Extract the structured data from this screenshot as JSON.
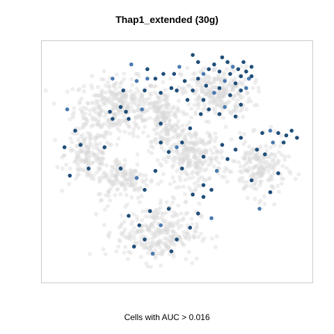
{
  "chart_data": {
    "type": "scatter",
    "title": "Thap1_extended (30g)",
    "xlabel": "Cells with AUC > 0.016",
    "ylabel": "",
    "xlim": [
      0,
      100
    ],
    "ylim": [
      0,
      100
    ],
    "grid": false,
    "axes_drawn": false,
    "colors": {
      "background_cells": "#d9d9d9",
      "highlighted_cells": "#1f4e79",
      "highlighted_cells_light": "#4a79b0",
      "frame": "#c8c8c8"
    },
    "background_clusters": [
      {
        "name": "upper-left",
        "cx": 28,
        "cy": 73,
        "rx": 15,
        "ry": 11,
        "n": 340
      },
      {
        "name": "left-middle",
        "cx": 17,
        "cy": 53,
        "rx": 8,
        "ry": 11,
        "n": 160
      },
      {
        "name": "center-top",
        "cx": 45,
        "cy": 67,
        "rx": 6,
        "ry": 12,
        "n": 160
      },
      {
        "name": "top-right",
        "cx": 65,
        "cy": 79,
        "rx": 12,
        "ry": 10,
        "n": 280
      },
      {
        "name": "center",
        "cx": 56,
        "cy": 52,
        "rx": 10,
        "ry": 11,
        "n": 260
      },
      {
        "name": "right",
        "cx": 81,
        "cy": 47,
        "rx": 9,
        "ry": 11,
        "n": 200
      },
      {
        "name": "bottom",
        "cx": 43,
        "cy": 20,
        "rx": 14,
        "ry": 11,
        "n": 300
      },
      {
        "name": "left-lower",
        "cx": 30,
        "cy": 43,
        "rx": 9,
        "ry": 8,
        "n": 150
      }
    ],
    "highlighted_points": [
      {
        "x": 33,
        "y": 91
      },
      {
        "x": 39,
        "y": 89
      },
      {
        "x": 42,
        "y": 85
      },
      {
        "x": 45,
        "y": 87
      },
      {
        "x": 49,
        "y": 87
      },
      {
        "x": 51,
        "y": 90
      },
      {
        "x": 53,
        "y": 84
      },
      {
        "x": 50,
        "y": 80
      },
      {
        "x": 44,
        "y": 79
      },
      {
        "x": 38,
        "y": 80
      },
      {
        "x": 39,
        "y": 85
      },
      {
        "x": 48,
        "y": 81
      },
      {
        "x": 56,
        "y": 95
      },
      {
        "x": 58,
        "y": 92
      },
      {
        "x": 62,
        "y": 89
      },
      {
        "x": 60,
        "y": 87
      },
      {
        "x": 64,
        "y": 91
      },
      {
        "x": 66,
        "y": 88
      },
      {
        "x": 67,
        "y": 94
      },
      {
        "x": 69,
        "y": 92
      },
      {
        "x": 71,
        "y": 90
      },
      {
        "x": 73,
        "y": 89
      },
      {
        "x": 74,
        "y": 86
      },
      {
        "x": 76,
        "y": 88
      },
      {
        "x": 70,
        "y": 87
      },
      {
        "x": 68,
        "y": 84
      },
      {
        "x": 66,
        "y": 81
      },
      {
        "x": 72,
        "y": 83
      },
      {
        "x": 74,
        "y": 80
      },
      {
        "x": 70,
        "y": 78
      },
      {
        "x": 64,
        "y": 79
      },
      {
        "x": 61,
        "y": 82
      },
      {
        "x": 58,
        "y": 85
      },
      {
        "x": 62,
        "y": 72
      },
      {
        "x": 66,
        "y": 70
      },
      {
        "x": 68,
        "y": 73
      },
      {
        "x": 74,
        "y": 74
      },
      {
        "x": 72,
        "y": 69
      },
      {
        "x": 78,
        "y": 90
      },
      {
        "x": 75,
        "y": 92
      },
      {
        "x": 77,
        "y": 85
      },
      {
        "x": 60,
        "y": 76
      },
      {
        "x": 56,
        "y": 80
      },
      {
        "x": 59,
        "y": 70
      },
      {
        "x": 82,
        "y": 62
      },
      {
        "x": 85,
        "y": 63
      },
      {
        "x": 88,
        "y": 62
      },
      {
        "x": 91,
        "y": 61
      },
      {
        "x": 95,
        "y": 60
      },
      {
        "x": 90,
        "y": 58
      },
      {
        "x": 86,
        "y": 58
      },
      {
        "x": 80,
        "y": 55
      },
      {
        "x": 83,
        "y": 53
      },
      {
        "x": 72,
        "y": 55
      },
      {
        "x": 69,
        "y": 51
      },
      {
        "x": 65,
        "y": 46
      },
      {
        "x": 63,
        "y": 38
      },
      {
        "x": 60,
        "y": 40
      },
      {
        "x": 56,
        "y": 36
      },
      {
        "x": 52,
        "y": 47
      },
      {
        "x": 50,
        "y": 56
      },
      {
        "x": 47,
        "y": 54
      },
      {
        "x": 44,
        "y": 58
      },
      {
        "x": 42,
        "y": 46
      },
      {
        "x": 38,
        "y": 38
      },
      {
        "x": 35,
        "y": 43
      },
      {
        "x": 29,
        "y": 47
      },
      {
        "x": 23,
        "y": 56
      },
      {
        "x": 14,
        "y": 57
      },
      {
        "x": 12,
        "y": 63
      },
      {
        "x": 9,
        "y": 72
      },
      {
        "x": 8,
        "y": 56
      },
      {
        "x": 10,
        "y": 44
      },
      {
        "x": 17,
        "y": 47
      },
      {
        "x": 30,
        "y": 80
      },
      {
        "x": 26,
        "y": 85
      },
      {
        "x": 31,
        "y": 71
      },
      {
        "x": 32,
        "y": 68
      },
      {
        "x": 29,
        "y": 73
      },
      {
        "x": 25,
        "y": 71
      },
      {
        "x": 35,
        "y": 84
      },
      {
        "x": 52,
        "y": 58
      },
      {
        "x": 55,
        "y": 64
      },
      {
        "x": 60,
        "y": 52
      },
      {
        "x": 60,
        "y": 35
      },
      {
        "x": 63,
        "y": 26
      },
      {
        "x": 58,
        "y": 28
      },
      {
        "x": 55,
        "y": 22
      },
      {
        "x": 50,
        "y": 17
      },
      {
        "x": 48,
        "y": 12
      },
      {
        "x": 41,
        "y": 11
      },
      {
        "x": 38,
        "y": 17
      },
      {
        "x": 36,
        "y": 23
      },
      {
        "x": 32,
        "y": 27
      },
      {
        "x": 34,
        "y": 14
      },
      {
        "x": 44,
        "y": 23
      },
      {
        "x": 47,
        "y": 30
      },
      {
        "x": 40,
        "y": 29
      },
      {
        "x": 78,
        "y": 42
      },
      {
        "x": 85,
        "y": 37
      },
      {
        "x": 81,
        "y": 30
      },
      {
        "x": 88,
        "y": 45
      },
      {
        "x": 67,
        "y": 57
      },
      {
        "x": 74,
        "y": 60
      },
      {
        "x": 44,
        "y": 66
      },
      {
        "x": 37,
        "y": 72
      },
      {
        "x": 26,
        "y": 68
      },
      {
        "x": 54,
        "y": 76
      },
      {
        "x": 93,
        "y": 63
      },
      {
        "x": 78,
        "y": 86
      },
      {
        "x": 76,
        "y": 81
      }
    ]
  }
}
